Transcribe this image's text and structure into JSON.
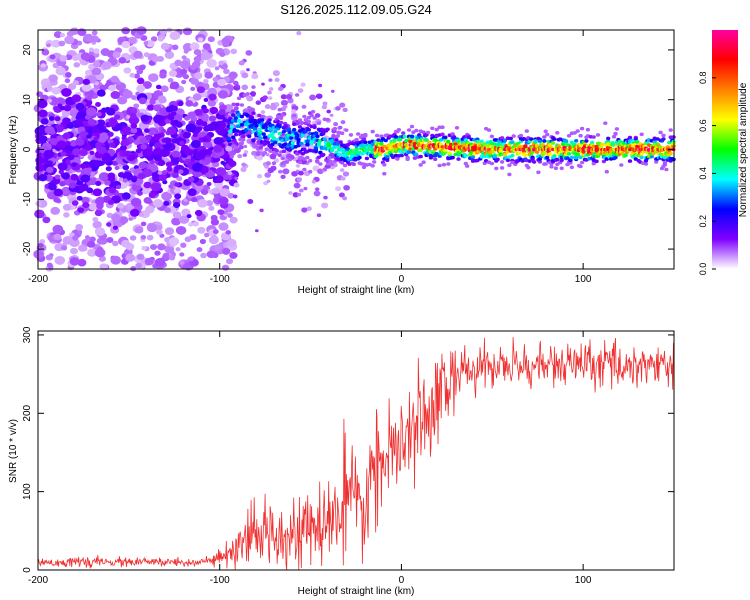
{
  "title": "S126.2025.112.09.05.G24",
  "chart_data": [
    {
      "type": "heatmap",
      "xlabel": "Height of straight line (km)",
      "ylabel": "Frequency (Hz)",
      "xlim": [
        -200,
        150
      ],
      "ylim": [
        -24,
        24
      ],
      "xticks": [
        -200,
        -100,
        0,
        100
      ],
      "yticks": [
        -20,
        -10,
        0,
        10,
        20
      ],
      "colorbar": {
        "label": "Normalized spectral amplitude",
        "range": [
          0,
          1
        ],
        "ticks": [
          0.0,
          0.2,
          0.4,
          0.6,
          0.8
        ],
        "colors": [
          "#ffffff",
          "#8000ff",
          "#0000ff",
          "#00ffff",
          "#00ff00",
          "#ffff00",
          "#ff8000",
          "#ff0000",
          "#ff00a0"
        ]
      },
      "ridge": [
        {
          "x": -200,
          "y": 0
        },
        {
          "x": -150,
          "y": 0
        },
        {
          "x": -100,
          "y": 0
        },
        {
          "x": -90,
          "y": 6
        },
        {
          "x": -80,
          "y": 4
        },
        {
          "x": -70,
          "y": 3
        },
        {
          "x": -60,
          "y": 2
        },
        {
          "x": -50,
          "y": 2
        },
        {
          "x": -40,
          "y": 1
        },
        {
          "x": -30,
          "y": -1
        },
        {
          "x": -20,
          "y": 0
        },
        {
          "x": -10,
          "y": 0
        },
        {
          "x": 0,
          "y": 1
        },
        {
          "x": 50,
          "y": 0
        },
        {
          "x": 100,
          "y": 0
        },
        {
          "x": 150,
          "y": 0
        }
      ]
    },
    {
      "type": "line",
      "xlabel": "Height of straight line (km)",
      "ylabel": "SNR (10 * v/v)",
      "xlim": [
        -200,
        150
      ],
      "ylim": [
        0,
        305
      ],
      "xticks": [
        -200,
        -100,
        0,
        100
      ],
      "yticks": [
        0,
        100,
        200,
        300
      ],
      "color": "#f03030",
      "trend": [
        {
          "x": -200,
          "y": 10
        },
        {
          "x": -110,
          "y": 10
        },
        {
          "x": -100,
          "y": 14
        },
        {
          "x": -90,
          "y": 25
        },
        {
          "x": -80,
          "y": 45
        },
        {
          "x": -70,
          "y": 50
        },
        {
          "x": -60,
          "y": 50
        },
        {
          "x": -50,
          "y": 48
        },
        {
          "x": -40,
          "y": 60
        },
        {
          "x": -30,
          "y": 90
        },
        {
          "x": -20,
          "y": 70
        },
        {
          "x": -18,
          "y": 120
        },
        {
          "x": -10,
          "y": 140
        },
        {
          "x": 0,
          "y": 150
        },
        {
          "x": 10,
          "y": 190
        },
        {
          "x": 20,
          "y": 225
        },
        {
          "x": 30,
          "y": 250
        },
        {
          "x": 50,
          "y": 260
        },
        {
          "x": 100,
          "y": 262
        },
        {
          "x": 150,
          "y": 262
        }
      ]
    }
  ]
}
